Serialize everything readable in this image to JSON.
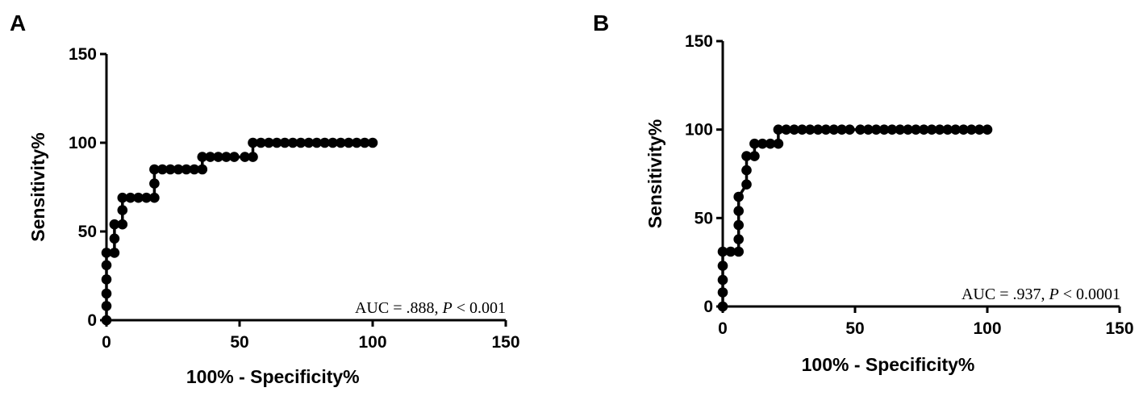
{
  "chart_data": [
    {
      "panel": "A",
      "type": "line",
      "xlabel": "100% - Specificity%",
      "ylabel": "Sensitivity%",
      "xlim": [
        0,
        150
      ],
      "ylim": [
        0,
        150
      ],
      "xticks": [
        "0",
        "50",
        "100",
        "150"
      ],
      "yticks": [
        "0",
        "50",
        "100",
        "150"
      ],
      "annotation": {
        "prefix": "AUC = .888, ",
        "p": "P",
        "suffix": " < 0.001"
      },
      "series": [
        {
          "x": [
            0,
            0,
            0,
            0,
            0,
            0,
            3,
            3,
            3,
            6,
            6,
            6,
            9,
            12,
            15,
            18,
            18,
            18,
            21,
            24,
            27,
            30,
            33,
            36,
            36,
            39,
            42,
            45,
            48,
            52,
            55,
            55,
            58,
            61,
            64,
            67,
            70,
            73,
            76,
            79,
            82,
            85,
            88,
            91,
            94,
            97,
            100
          ],
          "y": [
            0,
            8,
            15,
            23,
            31,
            38,
            38,
            46,
            54,
            54,
            62,
            69,
            69,
            69,
            69,
            69,
            77,
            85,
            85,
            85,
            85,
            85,
            85,
            85,
            92,
            92,
            92,
            92,
            92,
            92,
            92,
            100,
            100,
            100,
            100,
            100,
            100,
            100,
            100,
            100,
            100,
            100,
            100,
            100,
            100,
            100,
            100
          ]
        }
      ]
    },
    {
      "panel": "B",
      "type": "line",
      "xlabel": "100% - Specificity%",
      "ylabel": "Sensitivity%",
      "xlim": [
        0,
        150
      ],
      "ylim": [
        0,
        150
      ],
      "xticks": [
        "0",
        "50",
        "100",
        "150"
      ],
      "yticks": [
        "0",
        "50",
        "100",
        "150"
      ],
      "annotation": {
        "prefix": "AUC = .937, ",
        "p": "P",
        "suffix": " < 0.0001"
      },
      "series": [
        {
          "x": [
            0,
            0,
            0,
            0,
            0,
            3,
            6,
            6,
            6,
            6,
            6,
            9,
            9,
            9,
            12,
            12,
            15,
            18,
            21,
            21,
            24,
            27,
            30,
            33,
            36,
            39,
            42,
            45,
            48,
            52,
            55,
            58,
            61,
            64,
            67,
            70,
            73,
            76,
            79,
            82,
            85,
            88,
            91,
            94,
            97,
            100
          ],
          "y": [
            0,
            8,
            15,
            23,
            31,
            31,
            31,
            38,
            46,
            54,
            62,
            69,
            77,
            85,
            85,
            92,
            92,
            92,
            92,
            100,
            100,
            100,
            100,
            100,
            100,
            100,
            100,
            100,
            100,
            100,
            100,
            100,
            100,
            100,
            100,
            100,
            100,
            100,
            100,
            100,
            100,
            100,
            100,
            100,
            100,
            100
          ]
        }
      ]
    }
  ]
}
